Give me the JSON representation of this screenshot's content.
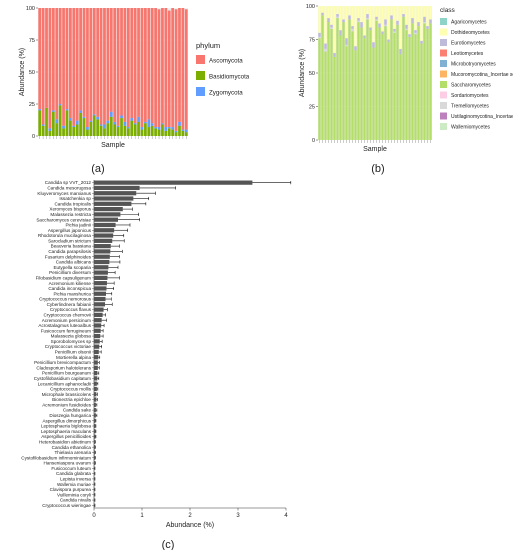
{
  "panel_labels": {
    "a": "(a)",
    "b": "(b)",
    "c": "(c)"
  },
  "chart_data": [
    {
      "panel": "a",
      "type": "bar",
      "stacked": true,
      "xlabel": "Sample",
      "ylabel": "Abundance (%)",
      "ylim": [
        0,
        100
      ],
      "y_ticks": [
        0,
        25,
        50,
        75,
        100
      ],
      "legend_title": "phylum",
      "legend_position": "right",
      "grid": true,
      "series": [
        {
          "name": "Ascomycota",
          "color": "#f8766d"
        },
        {
          "name": "Basidiomycota",
          "color": "#7cae00"
        },
        {
          "name": "Zygomycota",
          "color": "#619cff"
        }
      ],
      "bottom_segments": [
        [
          0,
          20,
          1,
          0
        ],
        [
          0,
          8,
          1,
          0
        ],
        [
          0,
          22,
          0,
          0
        ],
        [
          0,
          4,
          2,
          0
        ],
        [
          0,
          19,
          1,
          0
        ],
        [
          0,
          10,
          3,
          0
        ],
        [
          0,
          24,
          1,
          0
        ],
        [
          0,
          6,
          2,
          0
        ],
        [
          0,
          20,
          1,
          0
        ],
        [
          0,
          12,
          2,
          0
        ],
        [
          0,
          7,
          1,
          0
        ],
        [
          0,
          9,
          3,
          0
        ],
        [
          0,
          18,
          2,
          0
        ],
        [
          0,
          14,
          1,
          0
        ],
        [
          0,
          5,
          2,
          0
        ],
        [
          0,
          11,
          1,
          0
        ],
        [
          0,
          16,
          1,
          0
        ],
        [
          0,
          13,
          2,
          0
        ],
        [
          0,
          8,
          1,
          0
        ],
        [
          0,
          6,
          3,
          0
        ],
        [
          0,
          10,
          2,
          0
        ],
        [
          0,
          15,
          4,
          0
        ],
        [
          0,
          9,
          2,
          0
        ],
        [
          0,
          7,
          1,
          0
        ],
        [
          0,
          14,
          2,
          0
        ],
        [
          0,
          8,
          3,
          0
        ],
        [
          0,
          6,
          1,
          0
        ],
        [
          0,
          12,
          2,
          0
        ],
        [
          0,
          9,
          1,
          0
        ],
        [
          0,
          11,
          4,
          0
        ],
        [
          0,
          5,
          2,
          0
        ],
        [
          0,
          10,
          1,
          0
        ],
        [
          0,
          7,
          6,
          0
        ],
        [
          0,
          8,
          2,
          0
        ],
        [
          0,
          6,
          1,
          0
        ],
        [
          0,
          5,
          2,
          1
        ],
        [
          0,
          9,
          1,
          0
        ],
        [
          0,
          4,
          3,
          0
        ],
        [
          0,
          6,
          1,
          2
        ],
        [
          0,
          5,
          2,
          0
        ],
        [
          0,
          3,
          1,
          1
        ],
        [
          0,
          8,
          3,
          0
        ],
        [
          0,
          4,
          1,
          0
        ],
        [
          0,
          3,
          2,
          1
        ]
      ]
    },
    {
      "panel": "b",
      "type": "bar",
      "stacked": true,
      "xlabel": "Sample",
      "ylabel": "Abundance (%)",
      "ylim": [
        0,
        100
      ],
      "y_ticks": [
        0,
        25,
        50,
        75,
        100
      ],
      "legend_title": "class",
      "legend_position": "right",
      "grid": true,
      "series": [
        {
          "name": "Agaricomycetes",
          "color": "#8dd3c7"
        },
        {
          "name": "Dothideomycetes",
          "color": "#ffffb3"
        },
        {
          "name": "Eurotiomycetes",
          "color": "#bebada"
        },
        {
          "name": "Leotiomycetes",
          "color": "#fb8072"
        },
        {
          "name": "Microbotryomycetes",
          "color": "#80b1d3"
        },
        {
          "name": "Mucoromycotina_Incertae sedis",
          "color": "#fdb462"
        },
        {
          "name": "Saccharomycetes",
          "color": "#b3de69"
        },
        {
          "name": "Sordariomycetes",
          "color": "#fccde5"
        },
        {
          "name": "Tremellomycetes",
          "color": "#d9d9d9"
        },
        {
          "name": "Ustilaginomycotina_Incertae sedis",
          "color": "#bc80bd"
        },
        {
          "name": "Wallemiomycetes",
          "color": "#ccebc5"
        }
      ],
      "top_segments": [
        [
          0,
          20,
          3,
          1
        ],
        [
          0,
          5,
          2,
          0
        ],
        [
          0,
          28,
          4,
          2
        ],
        [
          0,
          9,
          3,
          0
        ],
        [
          0,
          14,
          2,
          1
        ],
        [
          0,
          35,
          3,
          0
        ],
        [
          0,
          6,
          2,
          1
        ],
        [
          0,
          18,
          4,
          0
        ],
        [
          0,
          10,
          2,
          0
        ],
        [
          0,
          24,
          5,
          1
        ],
        [
          0,
          7,
          3,
          0
        ],
        [
          0,
          15,
          2,
          2
        ],
        [
          0,
          30,
          3,
          0
        ],
        [
          0,
          9,
          2,
          1
        ],
        [
          0,
          12,
          4,
          0
        ],
        [
          0,
          22,
          2,
          0
        ],
        [
          0,
          6,
          3,
          1
        ],
        [
          0,
          16,
          2,
          0
        ],
        [
          0,
          27,
          4,
          0
        ],
        [
          0,
          8,
          2,
          1
        ],
        [
          0,
          13,
          3,
          0
        ],
        [
          0,
          19,
          2,
          0
        ],
        [
          0,
          10,
          4,
          1
        ],
        [
          0,
          25,
          2,
          0
        ],
        [
          0,
          7,
          3,
          0
        ],
        [
          0,
          17,
          2,
          1
        ],
        [
          0,
          11,
          3,
          0
        ],
        [
          0,
          32,
          4,
          0
        ],
        [
          0,
          6,
          2,
          0
        ],
        [
          0,
          14,
          3,
          1
        ],
        [
          0,
          21,
          2,
          0
        ],
        [
          0,
          9,
          4,
          0
        ],
        [
          0,
          18,
          2,
          1
        ],
        [
          0,
          12,
          3,
          0
        ],
        [
          0,
          26,
          2,
          0
        ],
        [
          0,
          8,
          4,
          1
        ],
        [
          0,
          15,
          2,
          0
        ],
        [
          0,
          10,
          3,
          0
        ]
      ]
    },
    {
      "panel": "c",
      "type": "bar",
      "orientation": "horizontal",
      "xlabel": "Abundance (%)",
      "ylabel": "",
      "xlim": [
        0,
        4
      ],
      "x_ticks": [
        0,
        1,
        2,
        3,
        4
      ],
      "categories": [
        "Candida sp VVT_2012",
        "Candida mesorugosa",
        "Kluyveromyces marxianus",
        "Issatchenkia sp",
        "Candida tropicalis",
        "Xeromyces bisporus",
        "Malassezia restricta",
        "Saccharomyces cerevisiae",
        "Pichia jadinii",
        "Aspergillus japonicus",
        "Rhodotorula mucilaginosa",
        "Sarocladium strictum",
        "Beauveria bassiana",
        "Candida parapsilosis",
        "Fusarium delphinoides",
        "Candida albicans",
        "Eutypella scoparia",
        "Penicillium diversum",
        "Filobasidium capsuligenum",
        "Acremonium kiliense",
        "Candida inconspicua",
        "Pichia manshurica",
        "Cryptococcus nemorosus",
        "Cyberlindnera fabianii",
        "Cryptococcus flavus",
        "Cryptococcus chernovii",
        "Acremonium persicinum",
        "Acrostalagmus luteoalbus",
        "Fusicoccum ferrugineum",
        "Malassezia globosa",
        "Sporobolomyces sp",
        "Cryptococcus victoriae",
        "Penicillium olsonii",
        "Mortierella alpina",
        "Penicillium brevicompactum",
        "Cladosporium halotolerans",
        "Penicillium bourgeanum",
        "Cystofilobasidium capitatum",
        "Lecanicillium aphanocladii",
        "Cryptococcus mollis",
        "Microphale brassicolens",
        "Bionectria epichloe",
        "Acremonium fusidioides",
        "Candida sake",
        "Dioszegia hungarica",
        "Aspergillus dimorphicus",
        "Leptosphaeria biglobosa",
        "Leptosphaeria maculans",
        "Aspergillus penicillioides",
        "Heterobasidion abietinum",
        "Candida ethanolica",
        "Thielavia arenaria",
        "Cystofilobasidium infirmominiatum",
        "Hanseniaspora uvarum",
        "Fusicoccum luteum",
        "Candida glabrata",
        "Lepista inversa",
        "Wallemia muriae",
        "Clavispora purpurea",
        "Vuilleminia coryli",
        "Candida nivalis",
        "Cryptococcus wieringae"
      ],
      "values": [
        3.3,
        0.95,
        0.88,
        0.82,
        0.78,
        0.6,
        0.55,
        0.5,
        0.45,
        0.42,
        0.4,
        0.38,
        0.35,
        0.34,
        0.33,
        0.32,
        0.3,
        0.29,
        0.28,
        0.27,
        0.26,
        0.25,
        0.24,
        0.23,
        0.2,
        0.18,
        0.16,
        0.15,
        0.14,
        0.13,
        0.12,
        0.11,
        0.1,
        0.09,
        0.08,
        0.08,
        0.07,
        0.07,
        0.06,
        0.06,
        0.05,
        0.05,
        0.04,
        0.04,
        0.04,
        0.03,
        0.03,
        0.03,
        0.03,
        0.02,
        0.02,
        0.02,
        0.02,
        0.02,
        0.01,
        0.01,
        0.01,
        0.01,
        0.01,
        0.01,
        0.01,
        0.01
      ],
      "errors": [
        0.8,
        0.75,
        0.4,
        0.32,
        0.3,
        0.2,
        0.38,
        0.45,
        0.3,
        0.28,
        0.22,
        0.25,
        0.18,
        0.25,
        0.2,
        0.22,
        0.2,
        0.15,
        0.25,
        0.15,
        0.15,
        0.12,
        0.12,
        0.15,
        0.08,
        0.06,
        0.1,
        0.06,
        0.05,
        0.06,
        0.05,
        0.05,
        0.05,
        0.03,
        0.03,
        0.03,
        0.03,
        0.03,
        0.02,
        0.02,
        0.02,
        0.02,
        0.02,
        0.02,
        0.02,
        0.01,
        0.01,
        0.01,
        0.01,
        0.01,
        0.01,
        0.01,
        0.01,
        0.01,
        0.01,
        0.01,
        0.01,
        0.01,
        0.01,
        0.01,
        0.01,
        0.01
      ],
      "bar_color": "#555555",
      "label_highlight_colors": [
        "#e41a1c",
        "#00a087",
        "#3b6fb6"
      ]
    }
  ]
}
